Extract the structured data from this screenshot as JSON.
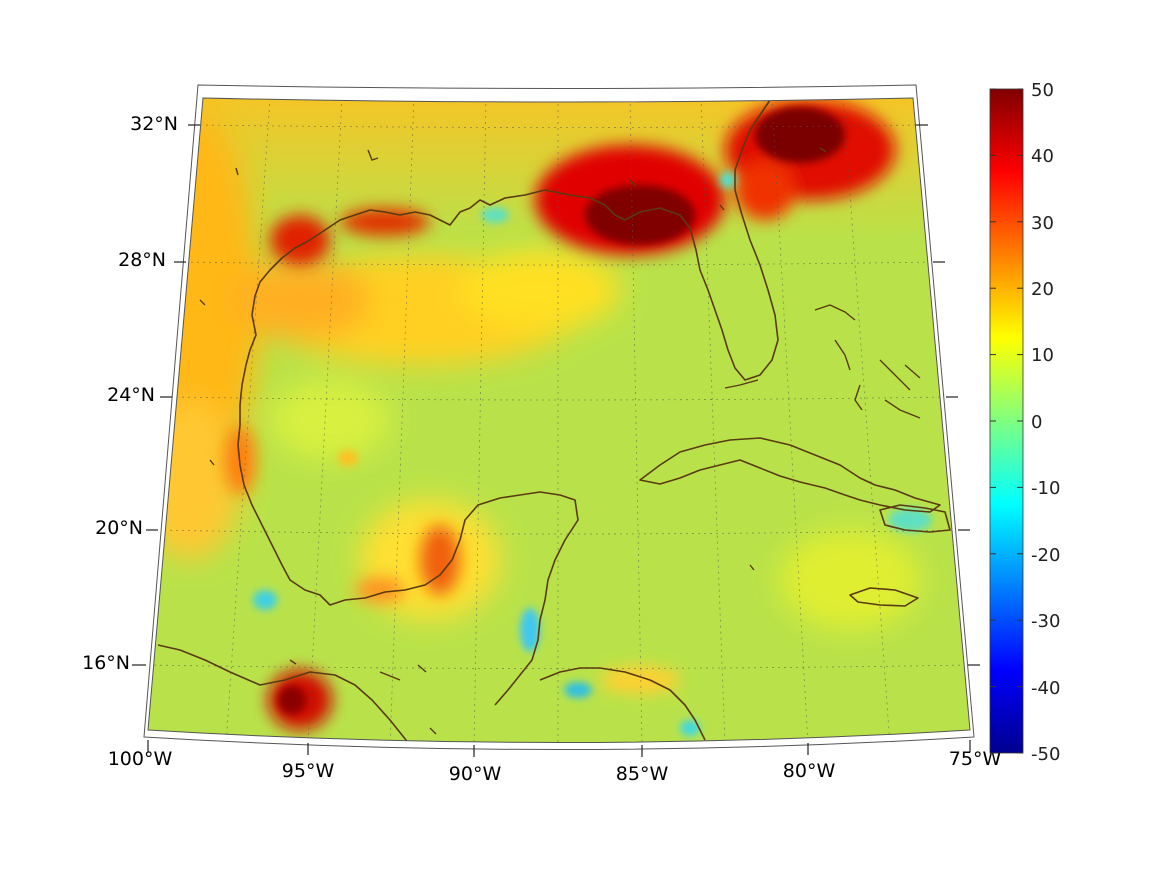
{
  "map": {
    "lon_labels": [
      "100°W",
      "95°W",
      "90°W",
      "85°W",
      "80°W",
      "75°W"
    ],
    "lat_labels": [
      "32°N",
      "28°N",
      "24°N",
      "20°N",
      "16°N"
    ]
  },
  "colorbar": {
    "colormap": "jet",
    "min": -50,
    "max": 50,
    "ticks": [
      "50",
      "40",
      "30",
      "20",
      "10",
      "0",
      "-10",
      "-20",
      "-30",
      "-40",
      "-50"
    ]
  },
  "colors": {
    "coastline": "#5a3a14",
    "background_field": "#b8e048"
  }
}
